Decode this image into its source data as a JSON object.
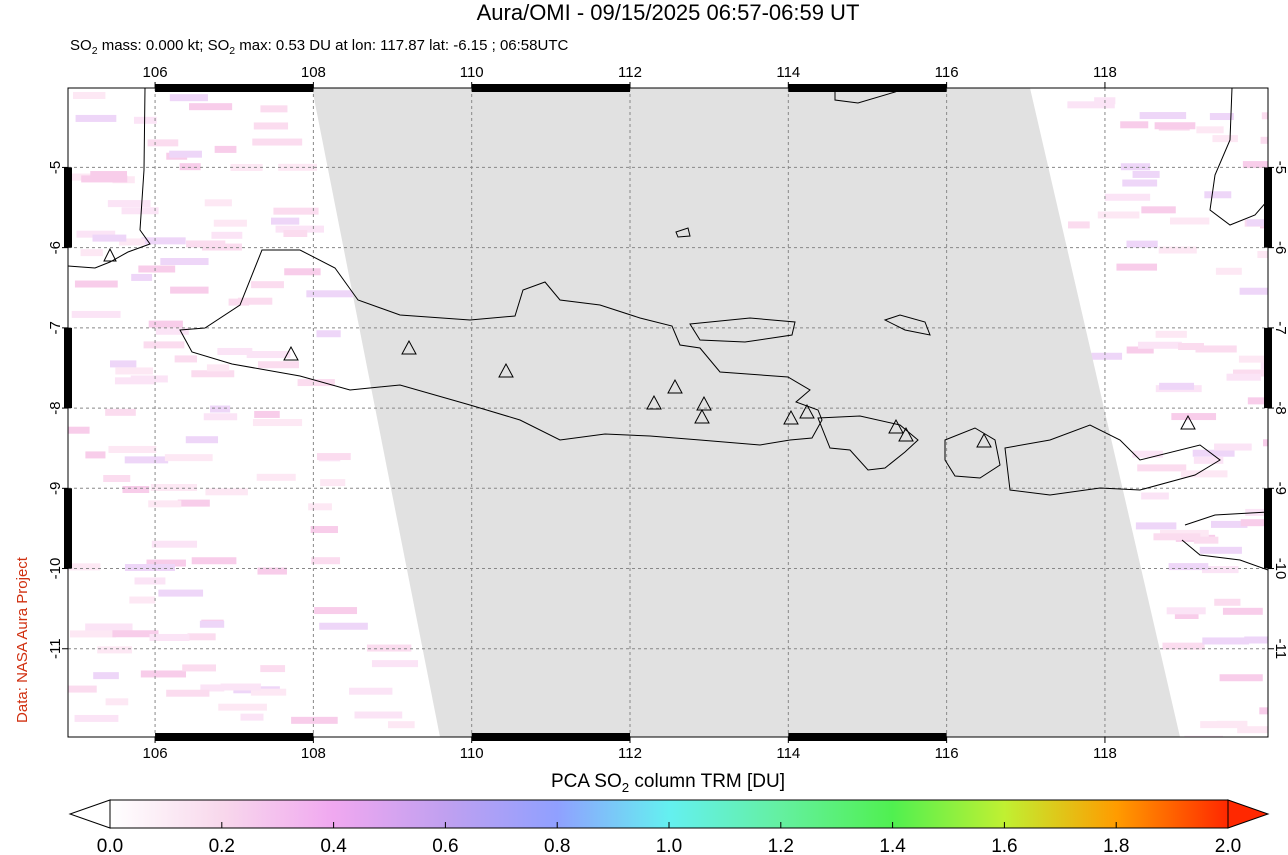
{
  "title": "Aura/OMI - 09/15/2025 06:57-06:59 UT",
  "subtitle_parts": [
    "SO",
    "2",
    " mass: 0.000 kt; SO",
    "2",
    " max: 0.53 DU at lon: 117.87 lat: -6.15 ; 06:58UTC"
  ],
  "credit": "Data: NASA Aura Project",
  "map": {
    "xlim": [
      104.9,
      120.06
    ],
    "ylim": [
      -12.1,
      -4.01
    ],
    "xticks": [
      106,
      108,
      110,
      112,
      114,
      116,
      118
    ],
    "yticks": [
      -5,
      -6,
      -7,
      -8,
      -9,
      -10,
      -11
    ],
    "grid": true,
    "swath_color": "#e1e1e1"
  },
  "colorbar": {
    "label_parts": [
      "PCA SO",
      "2",
      " column TRM [DU]"
    ],
    "lim": [
      0,
      2
    ],
    "ticks": [
      {
        "value": 0,
        "label": "0.0"
      },
      {
        "value": 0.2,
        "label": "0.2"
      },
      {
        "value": 0.4,
        "label": "0.4"
      },
      {
        "value": 0.6,
        "label": "0.6"
      },
      {
        "value": 0.8,
        "label": "0.8"
      },
      {
        "value": 1,
        "label": "1.0"
      },
      {
        "value": 1.2,
        "label": "1.2"
      },
      {
        "value": 1.4,
        "label": "1.4"
      },
      {
        "value": 1.6,
        "label": "1.6"
      },
      {
        "value": 1.8,
        "label": "1.8"
      },
      {
        "value": 2,
        "label": "2.0"
      }
    ],
    "colors": [
      "#ffffff",
      "#f8d8ec",
      "#f0a8f0",
      "#c0a0f0",
      "#90a0ff",
      "#64f0f0",
      "#64f0a0",
      "#50f050",
      "#c0f032",
      "#ff9c00",
      "#ff2800"
    ]
  }
}
